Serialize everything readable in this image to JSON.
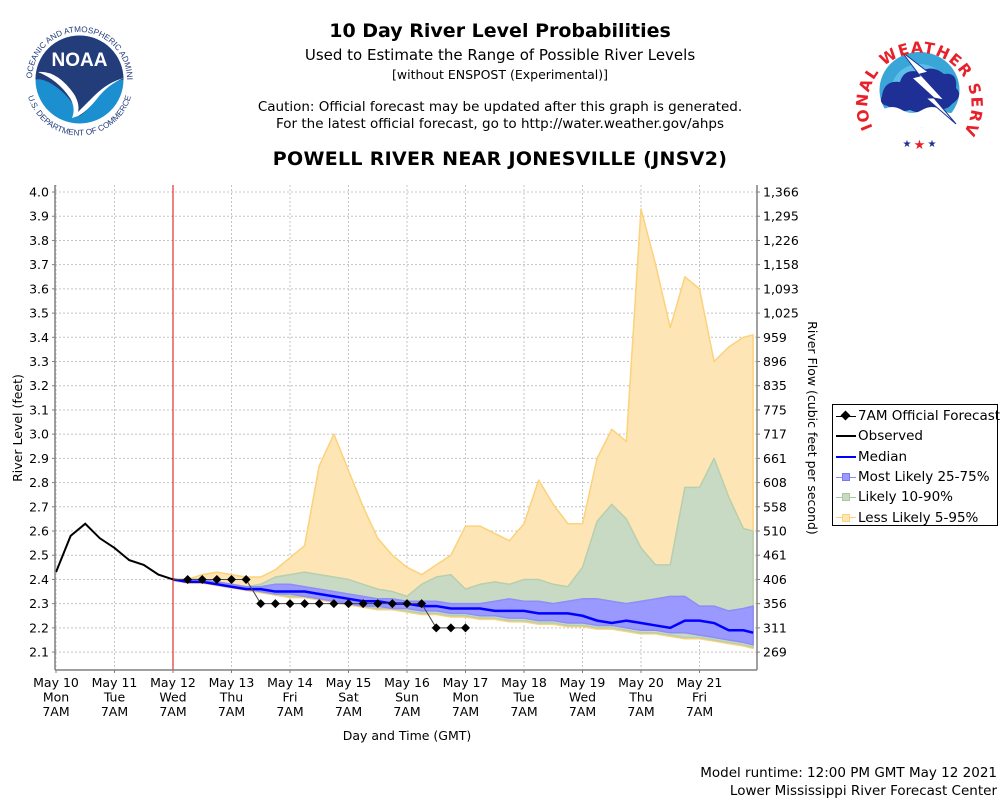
{
  "header": {
    "title": "10 Day River Level Probabilities",
    "subtitle": "Used to Estimate the Range of Possible River Levels",
    "subnote": "[without ENSPOST (Experimental)]",
    "caution_line1": "Caution: Official forecast may be updated after this graph is generated.",
    "caution_line2": "For the latest official forecast, go to http://water.weather.gov/ahps",
    "station": "POWELL RIVER NEAR JONESVILLE (JNSV2)"
  },
  "logos": {
    "left": {
      "name": "NOAA",
      "ring_text": "NATIONAL OCEANIC AND ATMOSPHERIC ADMINISTRATION",
      "bottom_text": "U.S. DEPARTMENT OF COMMERCE"
    },
    "right": {
      "name": "NATIONAL WEATHER SERVICE"
    }
  },
  "footer": {
    "runtime": "Model runtime: 12:00 PM GMT May 12 2021",
    "center": "Lower Mississippi River Forecast Center"
  },
  "colors": {
    "observed": "#000000",
    "median": "#0000ff",
    "band_25_75": "#9999ff",
    "band_10_90": "#c9dac4",
    "band_5_95": "#fde5b5",
    "band_5_95_edge": "#fcd27a",
    "now_line": "#e03030",
    "forecast": "#000000"
  },
  "chart_data": {
    "type": "area",
    "title": "10 Day River Level Probabilities",
    "xlabel": "Day and Time (GMT)",
    "ylabel": "River Level (feet)",
    "y2label": "River Flow (cubic feet per second)",
    "ylim": [
      2.026,
      4.029
    ],
    "x_unit": "hours since May 10 07:00 GMT",
    "xlim": [
      0,
      240
    ],
    "grid": true,
    "legend_position": "right",
    "now_hour": 48,
    "x_ticks": [
      {
        "hour": 0,
        "line1": "May 10",
        "line2": "Mon",
        "line3": "7AM"
      },
      {
        "hour": 24,
        "line1": "May 11",
        "line2": "Tue",
        "line3": "7AM"
      },
      {
        "hour": 48,
        "line1": "May 12",
        "line2": "Wed",
        "line3": "7AM"
      },
      {
        "hour": 72,
        "line1": "May 13",
        "line2": "Thu",
        "line3": "7AM"
      },
      {
        "hour": 96,
        "line1": "May 14",
        "line2": "Fri",
        "line3": "7AM"
      },
      {
        "hour": 120,
        "line1": "May 15",
        "line2": "Sat",
        "line3": "7AM"
      },
      {
        "hour": 144,
        "line1": "May 16",
        "line2": "Sun",
        "line3": "7AM"
      },
      {
        "hour": 168,
        "line1": "May 17",
        "line2": "Mon",
        "line3": "7AM"
      },
      {
        "hour": 192,
        "line1": "May 18",
        "line2": "Tue",
        "line3": "7AM"
      },
      {
        "hour": 216,
        "line1": "May 19",
        "line2": "Wed",
        "line3": "7AM"
      },
      {
        "hour": 240,
        "line1": "May 20",
        "line2": "Thu",
        "line3": "7AM"
      },
      {
        "hour": 264,
        "line1": "May 21",
        "line2": "Fri",
        "line3": "7AM"
      }
    ],
    "y_ticks": [
      {
        "stage": 2.1,
        "label": "2.1",
        "flow": "269"
      },
      {
        "stage": 2.2,
        "label": "2.2",
        "flow": "311"
      },
      {
        "stage": 2.3,
        "label": "2.3",
        "flow": "356"
      },
      {
        "stage": 2.4,
        "label": "2.4",
        "flow": "406"
      },
      {
        "stage": 2.5,
        "label": "2.5",
        "flow": "461"
      },
      {
        "stage": 2.6,
        "label": "2.6",
        "flow": "510"
      },
      {
        "stage": 2.7,
        "label": "2.7",
        "flow": "558"
      },
      {
        "stage": 2.8,
        "label": "2.8",
        "flow": "608"
      },
      {
        "stage": 2.9,
        "label": "2.9",
        "flow": "661"
      },
      {
        "stage": 3.0,
        "label": "3.0",
        "flow": "717"
      },
      {
        "stage": 3.1,
        "label": "3.1",
        "flow": "775"
      },
      {
        "stage": 3.2,
        "label": "3.2",
        "flow": "835"
      },
      {
        "stage": 3.3,
        "label": "3.3",
        "flow": "896"
      },
      {
        "stage": 3.4,
        "label": "3.4",
        "flow": "959"
      },
      {
        "stage": 3.5,
        "label": "3.5",
        "flow": "1,025"
      },
      {
        "stage": 3.6,
        "label": "3.6",
        "flow": "1,093"
      },
      {
        "stage": 3.7,
        "label": "3.7",
        "flow": "1,158"
      },
      {
        "stage": 3.8,
        "label": "3.8",
        "flow": "1,226"
      },
      {
        "stage": 3.9,
        "label": "3.9",
        "flow": "1,295"
      },
      {
        "stage": 4.0,
        "label": "4.0",
        "flow": "1,366"
      }
    ],
    "legend": [
      {
        "key": "forecast",
        "label": "7AM Official Forecast"
      },
      {
        "key": "observed",
        "label": "Observed"
      },
      {
        "key": "median",
        "label": "Median"
      },
      {
        "key": "band_25_75",
        "label": "Most Likely 25-75%"
      },
      {
        "key": "band_10_90",
        "label": "Likely 10-90%"
      },
      {
        "key": "band_5_95",
        "label": "Less Likely 5-95%"
      }
    ],
    "observed": {
      "hours": [
        0,
        6,
        12,
        18,
        24,
        30,
        36,
        42,
        48
      ],
      "values": [
        2.43,
        2.58,
        2.63,
        2.57,
        2.53,
        2.48,
        2.46,
        2.42,
        2.4
      ]
    },
    "official_forecast": {
      "hours": [
        54,
        60,
        66,
        72,
        78,
        84,
        90,
        96,
        102,
        108,
        114,
        120,
        126,
        132,
        138,
        144,
        150,
        156,
        162,
        168
      ],
      "values": [
        2.4,
        2.4,
        2.4,
        2.4,
        2.4,
        2.3,
        2.3,
        2.3,
        2.3,
        2.3,
        2.3,
        2.3,
        2.3,
        2.3,
        2.3,
        2.3,
        2.3,
        2.2,
        2.2,
        2.2
      ]
    },
    "probabilistic": {
      "hours": [
        48,
        54,
        60,
        66,
        72,
        78,
        84,
        90,
        96,
        102,
        108,
        114,
        120,
        126,
        132,
        138,
        144,
        150,
        156,
        162,
        168,
        174,
        180,
        186,
        192,
        198,
        204,
        210,
        216,
        222,
        228,
        234,
        240,
        246,
        252,
        258,
        264,
        270,
        276,
        282,
        286
      ],
      "median": [
        2.4,
        2.39,
        2.39,
        2.38,
        2.37,
        2.36,
        2.36,
        2.35,
        2.35,
        2.35,
        2.34,
        2.33,
        2.32,
        2.31,
        2.31,
        2.3,
        2.3,
        2.29,
        2.29,
        2.28,
        2.28,
        2.28,
        2.27,
        2.27,
        2.27,
        2.26,
        2.26,
        2.26,
        2.25,
        2.23,
        2.22,
        2.23,
        2.22,
        2.21,
        2.2,
        2.23,
        2.23,
        2.22,
        2.19,
        2.19,
        2.18
      ],
      "p25": [
        2.4,
        2.39,
        2.39,
        2.38,
        2.37,
        2.36,
        2.35,
        2.34,
        2.34,
        2.33,
        2.32,
        2.31,
        2.3,
        2.29,
        2.29,
        2.28,
        2.28,
        2.27,
        2.27,
        2.26,
        2.26,
        2.25,
        2.25,
        2.24,
        2.24,
        2.23,
        2.23,
        2.22,
        2.22,
        2.21,
        2.21,
        2.2,
        2.19,
        2.19,
        2.18,
        2.18,
        2.17,
        2.16,
        2.15,
        2.14,
        2.13
      ],
      "p75": [
        2.4,
        2.4,
        2.4,
        2.39,
        2.38,
        2.37,
        2.37,
        2.38,
        2.38,
        2.37,
        2.36,
        2.35,
        2.34,
        2.33,
        2.32,
        2.32,
        2.31,
        2.31,
        2.31,
        2.3,
        2.3,
        2.3,
        2.31,
        2.32,
        2.31,
        2.31,
        2.3,
        2.31,
        2.32,
        2.32,
        2.31,
        2.3,
        2.31,
        2.32,
        2.33,
        2.33,
        2.29,
        2.29,
        2.27,
        2.28,
        2.29
      ],
      "p10": [
        2.4,
        2.39,
        2.39,
        2.38,
        2.37,
        2.36,
        2.35,
        2.34,
        2.33,
        2.33,
        2.32,
        2.31,
        2.3,
        2.29,
        2.28,
        2.28,
        2.27,
        2.26,
        2.26,
        2.25,
        2.25,
        2.24,
        2.24,
        2.23,
        2.23,
        2.22,
        2.22,
        2.21,
        2.21,
        2.2,
        2.2,
        2.19,
        2.18,
        2.18,
        2.17,
        2.16,
        2.16,
        2.15,
        2.14,
        2.13,
        2.12
      ],
      "p90": [
        2.4,
        2.4,
        2.4,
        2.39,
        2.38,
        2.37,
        2.38,
        2.41,
        2.42,
        2.43,
        2.42,
        2.41,
        2.4,
        2.38,
        2.36,
        2.35,
        2.33,
        2.38,
        2.41,
        2.42,
        2.36,
        2.38,
        2.39,
        2.38,
        2.4,
        2.4,
        2.38,
        2.37,
        2.45,
        2.64,
        2.71,
        2.65,
        2.53,
        2.46,
        2.46,
        2.78,
        2.78,
        2.9,
        2.74,
        2.61,
        2.6
      ],
      "p05": [
        2.4,
        2.4,
        2.42,
        2.43,
        2.42,
        2.41,
        2.41,
        2.44,
        2.49,
        2.54,
        2.87,
        3.0,
        2.85,
        2.7,
        2.57,
        2.5,
        2.45,
        2.42,
        2.46,
        2.5,
        2.62,
        2.62,
        2.59,
        2.56,
        2.63,
        2.81,
        2.71,
        2.63,
        2.63,
        2.9,
        3.02,
        2.97,
        3.93,
        3.7,
        3.44,
        3.65,
        3.6,
        3.3,
        3.36,
        3.4,
        3.41
      ]
    }
  }
}
